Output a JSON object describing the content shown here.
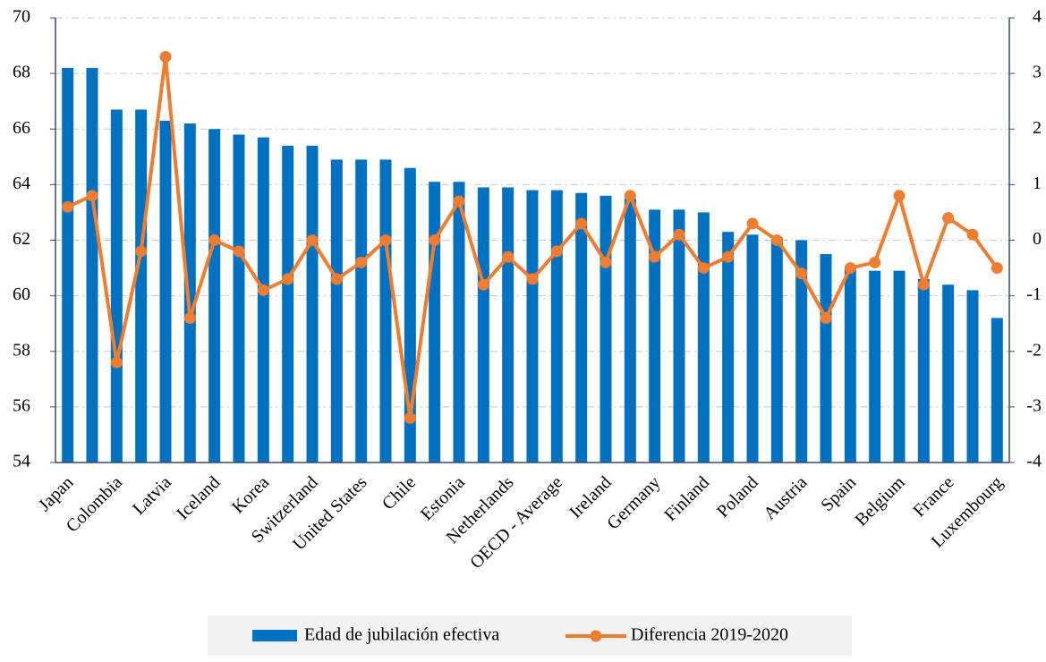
{
  "chart_data": {
    "type": "bar_line",
    "categories": [
      "Japan",
      null,
      "Colombia",
      null,
      "Latvia",
      null,
      "Iceland",
      null,
      "Korea",
      null,
      "Switzerland",
      null,
      "United States",
      null,
      "Chile",
      null,
      "Estonia",
      null,
      "Netherlands",
      null,
      "OECD - Average",
      null,
      "Ireland",
      null,
      "Germany",
      null,
      "Finland",
      null,
      "Poland",
      null,
      "Austria",
      null,
      "Spain",
      null,
      "Belgium",
      null,
      "France",
      null,
      "Luxembourg"
    ],
    "series": [
      {
        "name": "Edad de jubilación efectiva",
        "type": "bar",
        "color": "#0070c0",
        "values": [
          68.2,
          68.2,
          66.7,
          66.7,
          66.3,
          66.2,
          66.0,
          65.8,
          65.7,
          65.4,
          65.4,
          64.9,
          64.9,
          64.9,
          64.6,
          64.1,
          64.1,
          63.9,
          63.9,
          63.8,
          63.8,
          63.7,
          63.6,
          63.5,
          63.1,
          63.1,
          63.0,
          62.3,
          62.2,
          62.1,
          62.0,
          61.5,
          61.0,
          60.9,
          60.9,
          60.6,
          60.4,
          60.2,
          59.2
        ]
      },
      {
        "name": "Diferencia 2019-2020",
        "type": "line",
        "color": "#ed7d31",
        "axis": "y2",
        "values": [
          0.6,
          0.8,
          -2.2,
          -0.2,
          3.3,
          -1.4,
          0,
          -0.2,
          -0.9,
          -0.7,
          0,
          -0.7,
          -0.4,
          0,
          -3.2,
          0,
          0.7,
          -0.8,
          -0.3,
          -0.7,
          -0.2,
          0.3,
          -0.4,
          0.8,
          -0.3,
          0.1,
          -0.5,
          -0.3,
          0.3,
          0,
          -0.6,
          -1.4,
          -0.5,
          -0.4,
          0.8,
          -0.8,
          0.4,
          0.1,
          -0.5
        ]
      }
    ],
    "ylim": [
      54,
      70
    ],
    "yticks": [
      54,
      56,
      58,
      60,
      62,
      64,
      66,
      68,
      70
    ],
    "y2lim": [
      -4,
      4
    ],
    "y2ticks": [
      -4,
      -3,
      -2,
      -1,
      0,
      1,
      2,
      3,
      4
    ],
    "grid": true
  }
}
